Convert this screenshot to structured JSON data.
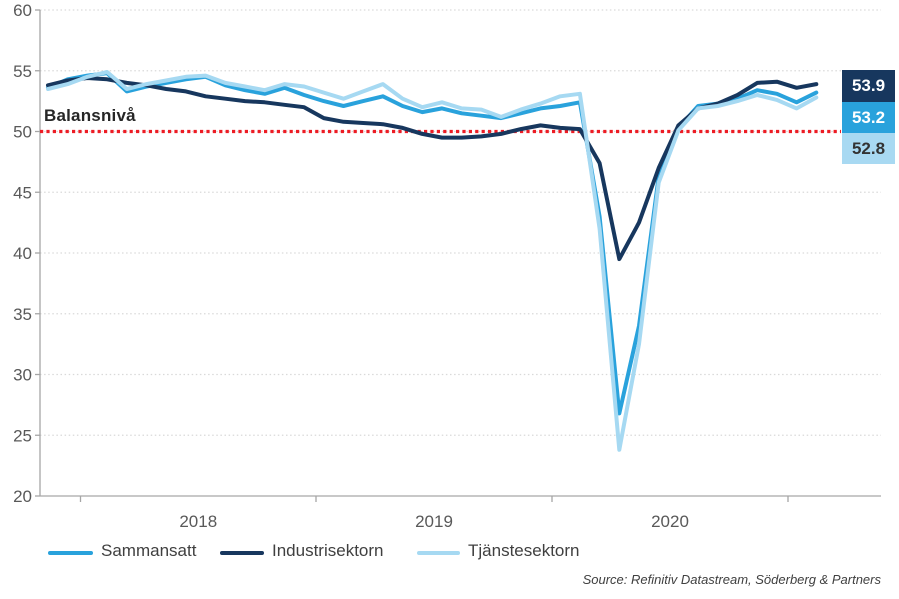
{
  "chart_data": {
    "type": "line",
    "title": "",
    "months": [
      "2017-11",
      "2017-12",
      "2018-01",
      "2018-02",
      "2018-03",
      "2018-04",
      "2018-05",
      "2018-06",
      "2018-07",
      "2018-08",
      "2018-09",
      "2018-10",
      "2018-11",
      "2018-12",
      "2019-01",
      "2019-02",
      "2019-03",
      "2019-04",
      "2019-05",
      "2019-06",
      "2019-07",
      "2019-08",
      "2019-09",
      "2019-10",
      "2019-11",
      "2019-12",
      "2020-01",
      "2020-02",
      "2020-03",
      "2020-04",
      "2020-05",
      "2020-06",
      "2020-07",
      "2020-08",
      "2020-09",
      "2020-10",
      "2020-11",
      "2020-12",
      "2021-01",
      "2021-02"
    ],
    "series": [
      {
        "name": "Sammansatt",
        "color": "#29a2dc",
        "values": [
          53.6,
          54.3,
          54.6,
          54.8,
          53.3,
          53.7,
          54.0,
          54.3,
          54.5,
          53.8,
          53.4,
          53.1,
          53.6,
          53.0,
          52.5,
          52.1,
          52.5,
          52.9,
          52.1,
          51.6,
          51.9,
          51.5,
          51.3,
          51.1,
          51.5,
          51.9,
          52.1,
          52.4,
          43.0,
          26.8,
          34.0,
          46.3,
          50.3,
          52.1,
          52.3,
          52.7,
          53.4,
          53.1,
          52.4,
          53.2
        ]
      },
      {
        "name": "Industrisektorn",
        "color": "#17375e",
        "values": [
          53.8,
          54.2,
          54.4,
          54.3,
          54.0,
          53.8,
          53.5,
          53.3,
          52.9,
          52.7,
          52.5,
          52.4,
          52.2,
          52.0,
          51.1,
          50.8,
          50.7,
          50.6,
          50.3,
          49.8,
          49.5,
          49.5,
          49.6,
          49.8,
          50.2,
          50.5,
          50.3,
          50.2,
          47.4,
          39.5,
          42.5,
          47.0,
          50.5,
          51.9,
          52.3,
          53.0,
          54.0,
          54.1,
          53.6,
          53.9
        ]
      },
      {
        "name": "Tjänstesektorn",
        "color": "#a6d9f2",
        "values": [
          53.5,
          53.9,
          54.5,
          54.9,
          53.5,
          53.9,
          54.2,
          54.5,
          54.6,
          54.0,
          53.7,
          53.4,
          53.9,
          53.7,
          53.2,
          52.7,
          53.3,
          53.9,
          52.7,
          52.0,
          52.4,
          51.9,
          51.8,
          51.2,
          51.8,
          52.3,
          52.9,
          53.1,
          42.0,
          23.8,
          32.5,
          45.8,
          50.1,
          51.9,
          52.1,
          52.5,
          53.0,
          52.6,
          51.9,
          52.8
        ]
      }
    ],
    "ylim": [
      20,
      60
    ],
    "y_ticks": [
      60,
      55,
      50,
      45,
      40,
      35,
      30,
      25,
      20
    ],
    "x_tick_labels": [
      "2018",
      "2019",
      "2020"
    ],
    "grid": true,
    "legend_position": "bottom",
    "balance_line": {
      "label": "Balansnivå",
      "value": 50,
      "color": "#ed1c24"
    },
    "grid_color": "#d9d9d9",
    "axis_color": "#a6a6a6",
    "tick_label_color": "#595959",
    "end_labels": [
      {
        "value": "53.9",
        "bg": "#17375e",
        "fg": "#ffffff"
      },
      {
        "value": "53.2",
        "bg": "#29a2dc",
        "fg": "#ffffff"
      },
      {
        "value": "52.8",
        "bg": "#a8d9f2",
        "fg": "#333333"
      }
    ]
  },
  "source": "Source: Refinitiv Datastream, Söderberg & Partners"
}
